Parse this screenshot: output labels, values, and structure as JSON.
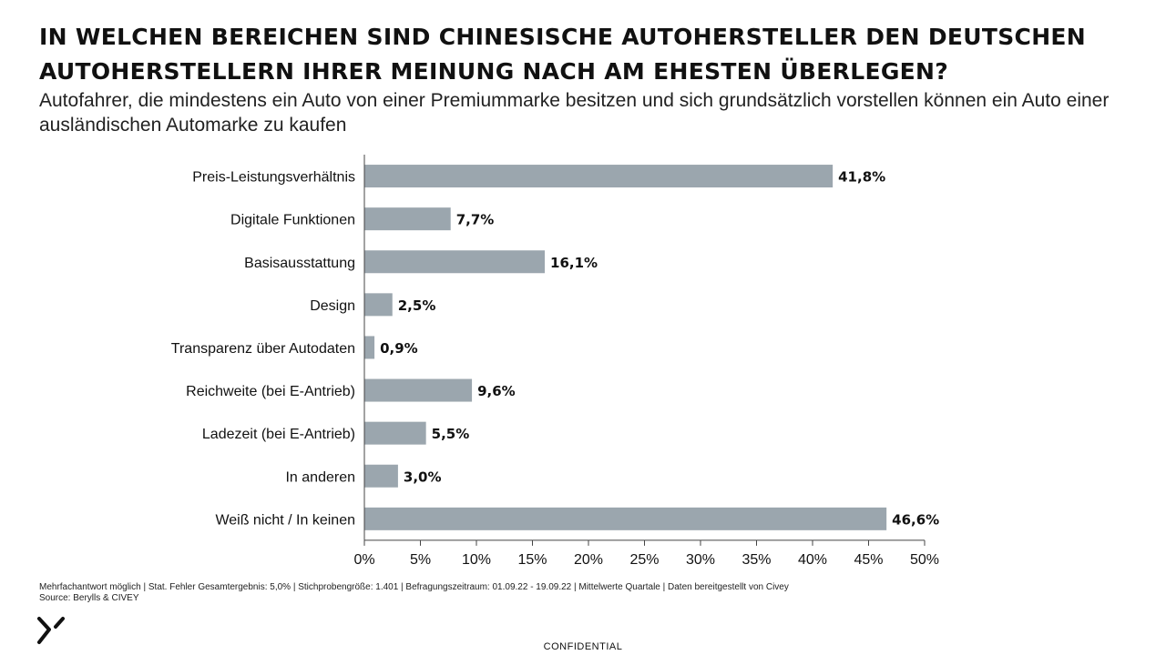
{
  "header": {
    "title": "In welchen Bereichen sind chinesische Autohersteller den deutschen Autoherstellern ihrer Meinung nach am ehesten überlegen?",
    "subtitle": "Autofahrer, die mindestens ein Auto von einer Premiummarke besitzen und sich grundsätzlich vorstellen können ein Auto einer ausländischen Automarke zu kaufen"
  },
  "chart_data": {
    "type": "bar",
    "orientation": "horizontal",
    "categories": [
      "Preis-Leistungsverhältnis",
      "Digitale Funktionen",
      "Basisausstattung",
      "Design",
      "Transparenz über Autodaten",
      "Reichweite (bei E-Antrieb)",
      "Ladezeit (bei E-Antrieb)",
      "In anderen",
      "Weiß nicht / In keinen"
    ],
    "values": [
      41.8,
      7.7,
      16.1,
      2.5,
      0.9,
      9.6,
      5.5,
      3.0,
      46.6
    ],
    "value_labels": [
      "41,8%",
      "7,7%",
      "16,1%",
      "2,5%",
      "0,9%",
      "9,6%",
      "5,5%",
      "3,0%",
      "46,6%"
    ],
    "xlim": [
      0,
      50
    ],
    "x_ticks": [
      "0%",
      "5%",
      "10%",
      "15%",
      "20%",
      "25%",
      "30%",
      "35%",
      "40%",
      "45%",
      "50%"
    ],
    "bar_color": "#9ba6ae",
    "grid": false
  },
  "footer": {
    "note": "Mehrfachantwort möglich | Stat. Fehler Gesamtergebnis: 5,0% | Stichprobengröße: 1.401 | Befragungszeitraum: 01.09.22 - 19.09.22 | Mittelwerte Quartale | Daten bereitgestellt von Civey",
    "source": "Source: Berylls & CIVEY",
    "confidential": "CONFIDENTIAL",
    "logo_icon": "berylls-logo-icon"
  }
}
